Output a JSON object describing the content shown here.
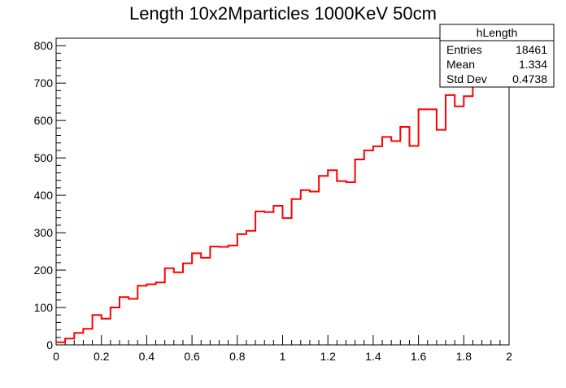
{
  "chart_data": {
    "type": "histogram",
    "title": "Length 10x2Mparticles 1000KeV 50cm",
    "xlabel": "",
    "ylabel": "",
    "xlim": [
      0,
      2
    ],
    "ylim": [
      0,
      820
    ],
    "x_ticks": [
      "0",
      "0.2",
      "0.4",
      "0.6",
      "0.8",
      "1",
      "1.2",
      "1.4",
      "1.6",
      "1.8",
      "2"
    ],
    "y_ticks": [
      "0",
      "100",
      "200",
      "300",
      "400",
      "500",
      "600",
      "700",
      "800"
    ],
    "bin_width": 0.04,
    "bin_start": 0,
    "series": [
      {
        "color": "#ff0000",
        "values": [
          7,
          17,
          32,
          43,
          80,
          70,
          100,
          128,
          123,
          158,
          162,
          167,
          205,
          194,
          218,
          245,
          233,
          263,
          262,
          266,
          296,
          305,
          357,
          355,
          372,
          339,
          390,
          414,
          410,
          452,
          467,
          438,
          435,
          496,
          520,
          531,
          556,
          545,
          583,
          532,
          630,
          630,
          575,
          668,
          638,
          665,
          700
        ]
      }
    ],
    "grid": false,
    "stats_box": {
      "name": "hLength",
      "rows": [
        {
          "label": "Entries",
          "value": "18461"
        },
        {
          "label": "Mean",
          "value": "1.334"
        },
        {
          "label": "Std Dev",
          "value": "0.4738"
        }
      ]
    }
  }
}
